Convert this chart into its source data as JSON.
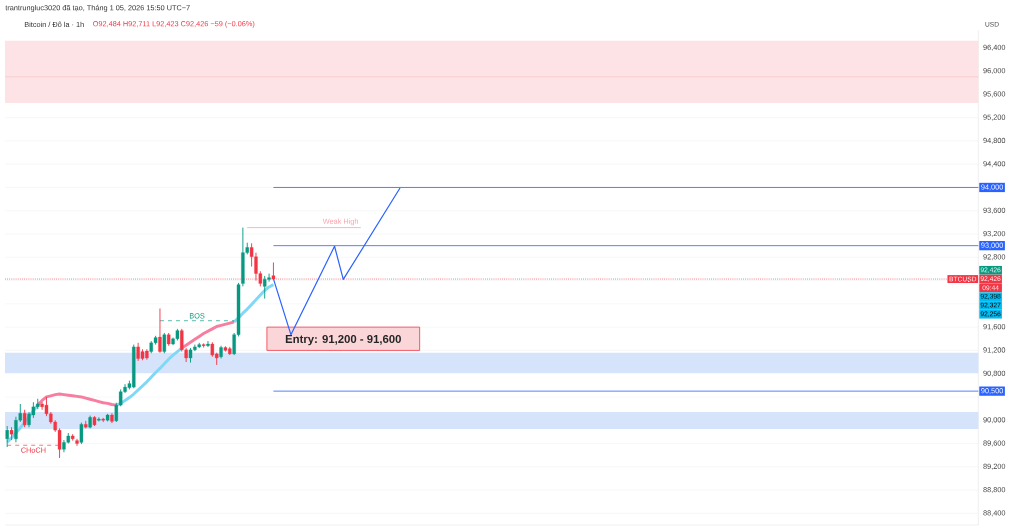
{
  "chart_data": {
    "type": "candlestick",
    "title": "Bitcoin / Đô la · 1h",
    "subtitle": "O92,484 H92,711 L92,423 C92,426 −59 (−0.06%)",
    "ylabel": "USD",
    "annotations": [
      "trantrungluc3020 đã tạo, Tháng 1 05, 2026 15:50 UTC−7",
      "92,426",
      "92,426",
      "09:44",
      "92,398",
      "92,327",
      "92,256"
    ],
    "categories": [
      null,
      null,
      null,
      null,
      null,
      null,
      null,
      null,
      null,
      null,
      null,
      null,
      null,
      null,
      null,
      null,
      null,
      null,
      null,
      null,
      null,
      null,
      null,
      null,
      null,
      null,
      null,
      null,
      null,
      null,
      null,
      null,
      null,
      null,
      null,
      null,
      null,
      null,
      null,
      null,
      null,
      null,
      null,
      null,
      null,
      null,
      null,
      null,
      null,
      null,
      null,
      null,
      null,
      null,
      null,
      null,
      null,
      null,
      null,
      null,
      null,
      null,
      null,
      null,
      null,
      null,
      null,
      null,
      null,
      null,
      null,
      null,
      null,
      null,
      null,
      null,
      null,
      null,
      null,
      null,
      null,
      null,
      null,
      null,
      null,
      null,
      null,
      null,
      null,
      null,
      null,
      null,
      null,
      null,
      null,
      null,
      null,
      null,
      null,
      null,
      null,
      null,
      null,
      null,
      null,
      null,
      null,
      null,
      null,
      null,
      null,
      null,
      null,
      null,
      null,
      null,
      null,
      null,
      null,
      null,
      null,
      null,
      null,
      null,
      null,
      null,
      null,
      null,
      null,
      null,
      null,
      null,
      null,
      null,
      null,
      null,
      null,
      null,
      null,
      null,
      null,
      null,
      null,
      null,
      null,
      null,
      null,
      null,
      null,
      null,
      null,
      null,
      null,
      null,
      null,
      null,
      null,
      null,
      null,
      null,
      null,
      null,
      null,
      null,
      null,
      null,
      null,
      null,
      null,
      null,
      null,
      null,
      null,
      null,
      null,
      null,
      null,
      null,
      null,
      null,
      null,
      null,
      null,
      null,
      null,
      null,
      null,
      null,
      null,
      null,
      null,
      null,
      null,
      null,
      null,
      null,
      null,
      null,
      null,
      null,
      null,
      null,
      null,
      null,
      null,
      null,
      null,
      null,
      null,
      null,
      null,
      null,
      null,
      null,
      null,
      null,
      null,
      null,
      null,
      null,
      null,
      null,
      null
    ],
    "ohlc": [
      [
        89680,
        89900,
        89540,
        89830
      ],
      [
        89830,
        89880,
        89660,
        89760
      ],
      [
        89680,
        90060,
        89620,
        90000
      ],
      [
        90000,
        90280,
        89970,
        90120
      ],
      [
        90120,
        90180,
        89880,
        89920
      ],
      [
        89920,
        90140,
        89880,
        90110
      ],
      [
        90090,
        90310,
        90040,
        90230
      ],
      [
        90230,
        90370,
        90190,
        90280
      ],
      [
        90280,
        90310,
        90180,
        90230
      ],
      [
        90260,
        90400,
        90070,
        90110
      ],
      [
        90110,
        90140,
        89940,
        89970
      ],
      [
        89970,
        90000,
        89800,
        89830
      ],
      [
        89830,
        89860,
        89350,
        89500
      ],
      [
        89500,
        89660,
        89450,
        89620
      ],
      [
        89620,
        89780,
        89600,
        89730
      ],
      [
        89730,
        89760,
        89650,
        89680
      ],
      [
        89650,
        89680,
        89560,
        89600
      ],
      [
        89620,
        89960,
        89590,
        89930
      ],
      [
        89930,
        89990,
        89860,
        89880
      ],
      [
        89880,
        90080,
        89860,
        90050
      ],
      [
        90050,
        90070,
        89900,
        89920
      ],
      [
        90000,
        90050,
        89980,
        90020
      ],
      [
        90020,
        90040,
        89970,
        90000
      ],
      [
        90000,
        90110,
        89980,
        90090
      ],
      [
        90090,
        90120,
        89950,
        89980
      ],
      [
        89990,
        90300,
        89970,
        90260
      ],
      [
        90260,
        90530,
        90240,
        90490
      ],
      [
        90490,
        90620,
        90470,
        90570
      ],
      [
        90560,
        90680,
        90530,
        90630
      ],
      [
        90570,
        91300,
        90550,
        91260
      ],
      [
        91260,
        91330,
        91020,
        91060
      ],
      [
        91180,
        91220,
        91030,
        91060
      ],
      [
        91190,
        91220,
        91040,
        91070
      ],
      [
        91180,
        91360,
        91150,
        91330
      ],
      [
        91330,
        91450,
        91300,
        91420
      ],
      [
        91430,
        91920,
        91160,
        91180
      ],
      [
        91180,
        91500,
        91150,
        91470
      ],
      [
        91470,
        91500,
        91280,
        91310
      ],
      [
        91310,
        91420,
        91290,
        91400
      ],
      [
        91400,
        91570,
        91370,
        91540
      ],
      [
        91540,
        91570,
        91180,
        91210
      ],
      [
        91210,
        91240,
        91000,
        91070
      ],
      [
        91070,
        91240,
        90990,
        91210
      ],
      [
        91210,
        91300,
        91190,
        91260
      ],
      [
        91260,
        91330,
        91240,
        91300
      ],
      [
        91300,
        91320,
        91250,
        91280
      ],
      [
        91280,
        91360,
        91260,
        91310
      ],
      [
        91310,
        91340,
        91090,
        91120
      ],
      [
        91140,
        91160,
        90950,
        91070
      ],
      [
        91090,
        91280,
        91060,
        91250
      ],
      [
        91250,
        91270,
        91180,
        91200
      ],
      [
        91230,
        91260,
        91120,
        91140
      ],
      [
        91140,
        91500,
        91120,
        91470
      ],
      [
        91470,
        92360,
        91440,
        92330
      ],
      [
        92350,
        93310,
        92300,
        92880
      ],
      [
        92880,
        93050,
        92850,
        92970
      ],
      [
        92970,
        93040,
        92640,
        92810
      ],
      [
        92810,
        92880,
        92400,
        92520
      ],
      [
        92520,
        92560,
        92300,
        92350
      ],
      [
        92300,
        92480,
        92090,
        92420
      ],
      [
        92420,
        92520,
        92380,
        92450
      ],
      [
        92484,
        92711,
        92423,
        92426
      ],
      null,
      null,
      null,
      null,
      null,
      null,
      null,
      null,
      null,
      null,
      null,
      null,
      null,
      null,
      null,
      null,
      null,
      null,
      null,
      null,
      null,
      null,
      null,
      null,
      null,
      null,
      null,
      null,
      null,
      null,
      null,
      null,
      null,
      null,
      null,
      null,
      null,
      null,
      null,
      null,
      null,
      null,
      null,
      null,
      null,
      null,
      null,
      null,
      null,
      null,
      null,
      null,
      null,
      null,
      null,
      null,
      null,
      null,
      null,
      null,
      null,
      null,
      null,
      null,
      null,
      null,
      null,
      null,
      null,
      null,
      null,
      null,
      null,
      null,
      null,
      null,
      null,
      null,
      null,
      null,
      null,
      null,
      null,
      null,
      null,
      null,
      null,
      null,
      null,
      null,
      null,
      null,
      null,
      null,
      null,
      null,
      null,
      null,
      null,
      null,
      null,
      null,
      null,
      null,
      null,
      null,
      null,
      null,
      null,
      null,
      null,
      null,
      null,
      null,
      null,
      null,
      null,
      null,
      null,
      null,
      null,
      null,
      null,
      null,
      null,
      null,
      null,
      null,
      null,
      null,
      null,
      null,
      null,
      null,
      null,
      null,
      null,
      null,
      null,
      null,
      null,
      null,
      null,
      null,
      null,
      null,
      null,
      null,
      null,
      null,
      null,
      null,
      null,
      null,
      null,
      null,
      null,
      null,
      null,
      null,
      null
    ],
    "colors": [
      "#089981",
      "#f23645",
      "#089981",
      "#089981",
      "#f23645",
      "#089981",
      "#089981",
      "#089981",
      "#f23645",
      "#f23645",
      "#f23645",
      "#f23645",
      "#f23645",
      "#089981",
      "#089981",
      "#f23645",
      "#f23645",
      "#089981",
      "#f23645",
      "#089981",
      "#f23645",
      "#089981",
      "#f23645",
      "#089981",
      "#f23645",
      "#089981",
      "#089981",
      "#089981",
      "#089981",
      "#089981",
      "#f23645",
      "#f23645",
      "#f23645",
      "#089981",
      "#089981",
      "#f23645",
      "#089981",
      "#f23645",
      "#089981",
      "#089981",
      "#f23645",
      "#f23645",
      "#089981",
      "#089981",
      "#089981",
      "#f23645",
      "#089981",
      "#f23645",
      "#f23645",
      "#089981",
      "#f23645",
      "#f23645",
      "#089981",
      "#089981",
      "#089981",
      "#089981",
      "#f23645",
      "#f23645",
      "#f23645",
      "#089981",
      "#089981",
      "#f23645",
      null,
      null,
      null,
      null,
      null,
      null,
      null,
      null,
      null,
      null,
      null,
      null,
      null,
      null,
      null,
      null,
      null,
      null,
      null,
      null,
      null,
      null,
      null,
      null,
      null,
      null,
      null,
      null,
      null,
      null,
      null,
      null,
      null,
      null,
      null,
      null,
      null,
      null,
      null,
      null,
      null,
      null,
      null,
      null,
      null,
      null,
      null,
      null,
      null,
      null,
      null,
      null,
      null,
      null,
      null,
      null,
      null,
      null,
      null,
      null,
      null,
      null,
      null,
      null,
      null,
      null,
      null,
      null,
      null,
      null,
      null,
      null,
      null,
      null,
      null,
      null,
      null,
      null,
      null,
      null,
      null,
      null,
      null,
      null,
      null,
      null,
      null,
      null,
      null,
      null,
      null,
      null,
      null,
      null,
      null,
      null,
      null,
      null,
      null,
      null,
      null,
      null,
      null,
      null,
      null,
      null,
      null,
      null,
      null,
      null,
      null,
      null,
      null,
      null,
      null,
      null,
      null,
      null,
      null,
      null,
      null,
      null,
      null,
      null,
      null,
      null,
      null,
      null,
      null,
      null,
      null,
      null,
      null,
      null,
      null,
      null,
      null,
      null,
      null,
      null,
      null,
      null,
      null,
      null,
      null,
      null,
      null,
      null,
      null,
      null,
      null,
      null,
      null,
      null,
      null,
      null,
      null,
      null,
      null,
      null,
      null
    ],
    "series": [
      {
        "type": "line",
        "color": "#7fd8f5",
        "values": [
          89620,
          89700,
          89780,
          89870,
          89960,
          90060,
          90160,
          90260,
          null,
          null,
          null,
          null,
          null,
          null,
          null,
          null,
          null,
          null,
          null,
          null,
          null,
          null,
          null,
          null,
          null,
          90260,
          90290,
          90340,
          90390,
          90450,
          90520,
          90590,
          90660,
          90740,
          90820,
          90890,
          90970,
          91050,
          91120,
          91180,
          91240,
          null,
          null,
          null,
          null,
          null,
          null,
          null,
          null,
          null,
          null,
          null,
          91690,
          91760,
          91840,
          91910,
          91990,
          92070,
          92150,
          92230,
          92290,
          92330,
          null,
          null,
          null,
          null,
          null,
          null,
          null,
          null,
          null,
          null,
          null,
          null,
          null,
          null,
          null,
          null,
          null,
          null,
          null,
          null,
          null,
          null,
          null,
          null,
          null,
          null,
          null,
          null,
          null,
          null,
          null,
          null,
          null,
          null,
          null,
          null,
          null,
          null,
          null,
          null,
          null,
          null,
          null,
          null,
          null,
          null,
          null,
          null,
          null,
          null,
          null,
          null,
          null,
          null,
          null,
          null,
          null,
          null,
          null,
          null,
          null,
          null,
          null,
          null,
          null,
          null,
          null,
          null,
          null,
          null,
          null,
          null,
          null,
          null,
          null,
          null,
          null,
          null,
          null,
          null,
          null,
          null,
          null,
          null,
          null,
          null,
          null,
          null,
          null,
          null,
          null,
          null,
          null,
          null,
          null,
          null,
          null,
          null,
          null,
          null,
          null,
          null,
          null,
          null,
          null,
          null,
          null,
          null,
          null,
          null,
          null,
          null,
          null,
          null,
          null,
          null,
          null,
          null,
          null,
          null,
          null,
          null,
          null,
          null,
          null,
          null,
          null,
          null,
          null,
          null,
          null,
          null,
          null,
          null,
          null,
          null,
          null,
          null,
          null,
          null,
          null,
          null,
          null,
          null,
          null,
          null,
          null,
          null,
          null,
          null,
          null,
          null,
          null,
          null,
          null,
          null,
          null,
          null,
          null,
          null,
          null
        ]
      },
      {
        "type": "line",
        "color": "#f77ea0",
        "values": [
          null,
          null,
          null,
          null,
          null,
          null,
          null,
          90260,
          90340,
          90400,
          90420,
          90440,
          90450,
          90440,
          90430,
          90420,
          90410,
          90400,
          90380,
          90360,
          90340,
          90320,
          90300,
          90290,
          90270,
          90260,
          null,
          null,
          null,
          null,
          null,
          null,
          null,
          null,
          null,
          null,
          null,
          null,
          null,
          null,
          91240,
          91290,
          91340,
          91390,
          91440,
          91490,
          91530,
          91570,
          91610,
          91630,
          91650,
          91670,
          91690,
          null,
          null,
          null,
          null,
          null,
          null,
          null,
          null,
          null,
          null,
          null,
          null,
          null,
          null,
          null,
          null,
          null,
          null,
          null,
          null,
          null,
          null,
          null,
          null,
          null,
          null,
          null,
          null,
          null,
          null,
          null,
          null,
          null,
          null,
          null,
          null,
          null,
          null,
          null,
          null,
          null,
          null,
          null,
          null,
          null,
          null,
          null,
          null,
          null,
          null,
          null,
          null,
          null,
          null,
          null,
          null,
          null,
          null,
          null,
          null,
          null,
          null,
          null,
          null,
          null,
          null,
          null,
          null,
          null,
          null,
          null,
          null,
          null,
          null,
          null,
          null,
          null,
          null,
          null,
          null,
          null,
          null,
          null,
          null,
          null,
          null,
          null,
          null,
          null,
          null,
          null,
          null,
          null,
          null,
          null,
          null,
          null,
          null,
          null,
          null,
          null,
          null,
          null,
          null,
          null,
          null,
          null,
          null,
          null,
          null,
          null,
          null,
          null,
          null,
          null,
          null,
          null,
          null,
          null,
          null,
          null,
          null,
          null,
          null,
          null,
          null,
          null,
          null,
          null,
          null,
          null,
          null,
          null,
          null,
          null,
          null,
          null,
          null,
          null,
          null,
          null,
          null,
          null,
          null,
          null,
          null,
          null,
          null,
          null,
          null,
          null,
          null,
          null,
          null,
          null,
          null,
          null,
          null,
          null,
          null,
          null,
          null,
          null,
          null,
          null,
          null,
          null,
          null,
          null,
          null
        ]
      },
      {
        "type": "line",
        "color": "#2962ff",
        "values": [
          null,
          null,
          null,
          null,
          null,
          null,
          null,
          null,
          null,
          null,
          null,
          null,
          null,
          null,
          null,
          null,
          null,
          null,
          null,
          null,
          null,
          null,
          null,
          null,
          null,
          null,
          null,
          null,
          null,
          null,
          null,
          null,
          null,
          null,
          null,
          null,
          null,
          null,
          null,
          null,
          null,
          null,
          null,
          null,
          null,
          null,
          null,
          null,
          null,
          null,
          null,
          null,
          null,
          null,
          null,
          null,
          null,
          null,
          null,
          null,
          null,
          92430,
          null,
          null,
          null,
          91470,
          null,
          null,
          null,
          null,
          null,
          null,
          null,
          null,
          null,
          92990,
          null,
          92420,
          null,
          null,
          null,
          null,
          null,
          null,
          null,
          null,
          null,
          null,
          null,
          null,
          93990,
          null,
          null,
          null,
          null,
          null,
          null,
          null,
          null,
          null,
          null,
          null,
          null,
          null,
          null,
          null,
          null,
          null,
          null,
          null,
          null,
          null,
          null,
          null,
          null,
          null,
          null,
          null,
          null,
          null,
          null,
          null,
          null,
          null,
          null,
          null,
          null,
          null,
          null,
          null,
          null,
          null,
          null,
          null,
          null,
          null,
          null,
          null,
          null,
          null,
          null,
          null,
          null,
          null,
          null,
          null,
          null,
          null,
          null,
          null,
          null,
          null,
          null,
          null,
          null,
          null,
          null,
          null,
          null,
          null,
          null,
          null,
          null,
          null,
          null,
          null,
          null,
          null,
          null,
          null,
          null,
          null,
          null,
          null,
          null,
          null,
          null,
          null,
          null,
          null,
          null,
          null,
          null,
          null,
          null,
          null,
          null,
          null,
          null,
          null,
          null,
          null,
          null,
          null,
          null,
          null,
          null,
          null,
          null,
          null,
          null,
          null,
          null,
          null,
          null,
          null,
          null,
          null,
          null,
          null,
          null,
          null,
          null,
          null,
          null,
          null,
          null,
          null,
          null,
          null,
          null,
          null,
          null
        ]
      },
      {
        "type": "line",
        "name": "Weak High",
        "color": "#f7a1a9",
        "values": [
          null,
          null,
          null,
          null,
          null,
          null,
          null,
          null,
          null,
          null,
          null,
          null,
          null,
          null,
          null,
          null,
          null,
          null,
          null,
          null,
          null,
          null,
          null,
          null,
          null,
          null,
          null,
          null,
          null,
          null,
          null,
          null,
          null,
          null,
          null,
          null,
          null,
          null,
          null,
          null,
          null,
          null,
          null,
          null,
          null,
          null,
          null,
          null,
          null,
          null,
          null,
          null,
          null,
          null,
          null,
          93310,
          93310,
          93310,
          93310,
          93310,
          93310,
          93310,
          93310,
          93310,
          93310,
          93310,
          93310,
          93310,
          93310,
          93310,
          93310,
          93310,
          93310,
          93310,
          93310,
          93310,
          93310,
          93310,
          93310,
          93310,
          93310,
          93310,
          null,
          null,
          null,
          null,
          null,
          null,
          null,
          null,
          null,
          null,
          null,
          null,
          null,
          null,
          null,
          null,
          null,
          null,
          null,
          null,
          null,
          null,
          null,
          null,
          null,
          null,
          null,
          null,
          null,
          null,
          null,
          null,
          null,
          null,
          null,
          null,
          null,
          null,
          null,
          null,
          null,
          null,
          null,
          null,
          null,
          null,
          null,
          null,
          null,
          null,
          null,
          null,
          null,
          null,
          null,
          null,
          null,
          null,
          null,
          null,
          null,
          null,
          null,
          null,
          null,
          null,
          null,
          null,
          null,
          null,
          null,
          null,
          null,
          null,
          null,
          null,
          null,
          null,
          null,
          null,
          null,
          null,
          null,
          null,
          null,
          null,
          null,
          null,
          null,
          null,
          null,
          null,
          null,
          null,
          null,
          null,
          null,
          null,
          null,
          null,
          null,
          null,
          null,
          null,
          null,
          null,
          null,
          null,
          null,
          null,
          null,
          null,
          null,
          null,
          null,
          null,
          null,
          null,
          null,
          null,
          null,
          null,
          null,
          null,
          null,
          null,
          null,
          null,
          null,
          null,
          null,
          null,
          null,
          null,
          null,
          null,
          null,
          null,
          null,
          null,
          null
        ]
      },
      {
        "type": "line",
        "name": "BOS",
        "color": "#089981",
        "line_style": "dashed",
        "values": [
          null,
          null,
          null,
          null,
          null,
          null,
          null,
          null,
          null,
          null,
          null,
          null,
          null,
          null,
          null,
          null,
          null,
          null,
          null,
          null,
          null,
          null,
          null,
          null,
          null,
          null,
          null,
          null,
          null,
          null,
          null,
          null,
          null,
          null,
          null,
          91710,
          91710,
          91710,
          91710,
          91710,
          91710,
          91710,
          91710,
          91710,
          91710,
          91710,
          91710,
          91710,
          91710,
          91710,
          91710,
          91710,
          91710,
          null,
          null,
          null,
          null,
          null,
          null,
          null,
          null,
          null,
          null,
          null,
          null,
          null,
          null,
          null,
          null,
          null,
          null,
          null,
          null,
          null,
          null,
          null,
          null,
          null,
          null,
          null,
          null,
          null,
          null,
          null,
          null,
          null,
          null,
          null,
          null,
          null,
          null,
          null,
          null,
          null,
          null,
          null,
          null,
          null,
          null,
          null,
          null,
          null,
          null,
          null,
          null,
          null,
          null,
          null,
          null,
          null,
          null,
          null,
          null,
          null,
          null,
          null,
          null,
          null,
          null,
          null,
          null,
          null,
          null,
          null,
          null,
          null,
          null,
          null,
          null,
          null,
          null,
          null,
          null,
          null,
          null,
          null,
          null,
          null,
          null,
          null,
          null,
          null,
          null,
          null,
          null,
          null,
          null,
          null,
          null,
          null,
          null,
          null,
          null,
          null,
          null,
          null,
          null,
          null,
          null,
          null,
          null,
          null,
          null,
          null,
          null,
          null,
          null,
          null,
          null,
          null,
          null,
          null,
          null,
          null,
          null,
          null,
          null,
          null,
          null,
          null,
          null,
          null,
          null,
          null,
          null,
          null,
          null,
          null,
          null,
          null,
          null,
          null,
          null,
          null,
          null,
          null,
          null,
          null,
          null,
          null,
          null,
          null,
          null,
          null,
          null,
          null,
          null,
          null,
          null,
          null,
          null,
          null,
          null,
          null,
          null,
          null,
          null,
          null,
          null,
          null,
          null,
          null,
          null
        ]
      },
      {
        "type": "line",
        "name": "CHoCH",
        "color": "#f23645",
        "line_style": "dashed",
        "values": [
          89570,
          89570,
          89570,
          89570,
          89570,
          89570,
          89570,
          89570,
          89570,
          89570,
          89570,
          89570,
          89570,
          null,
          null,
          null,
          null,
          null,
          null,
          null,
          null,
          null,
          null,
          null,
          null,
          null,
          null,
          null,
          null,
          null,
          null,
          null,
          null,
          null,
          null,
          null,
          null,
          null,
          null,
          null,
          null,
          null,
          null,
          null,
          null,
          null,
          null,
          null,
          null,
          null,
          null,
          null,
          null,
          null,
          null,
          null,
          null,
          null,
          null,
          null,
          null,
          null,
          null,
          null,
          null,
          null,
          null,
          null,
          null,
          null,
          null,
          null,
          null,
          null,
          null,
          null,
          null,
          null,
          null,
          null,
          null,
          null,
          null,
          null,
          null,
          null,
          null,
          null,
          null,
          null,
          null,
          null,
          null,
          null,
          null,
          null,
          null,
          null,
          null,
          null,
          null,
          null,
          null,
          null,
          null,
          null,
          null,
          null,
          null,
          null,
          null,
          null,
          null,
          null,
          null,
          null,
          null,
          null,
          null,
          null,
          null,
          null,
          null,
          null,
          null,
          null,
          null,
          null,
          null,
          null,
          null,
          null,
          null,
          null,
          null,
          null,
          null,
          null,
          null,
          null,
          null,
          null,
          null,
          null,
          null,
          null,
          null,
          null,
          null,
          null,
          null,
          null,
          null,
          null,
          null,
          null,
          null,
          null,
          null,
          null,
          null,
          null,
          null,
          null,
          null,
          null,
          null,
          null,
          null,
          null,
          null,
          null,
          null,
          null,
          null,
          null,
          null,
          null,
          null,
          null,
          null,
          null,
          null,
          null,
          null,
          null,
          null,
          null,
          null,
          null,
          null,
          null,
          null,
          null,
          null,
          null,
          null,
          null,
          null,
          null,
          null,
          null,
          null,
          null,
          null,
          null,
          null,
          null,
          null,
          null,
          null,
          null,
          null,
          null,
          null,
          null,
          null,
          null,
          null,
          null,
          null,
          null,
          null
        ]
      }
    ],
    "ref_lines": [
      {
        "axis": "y",
        "value": 94000,
        "label": "94,000",
        "color": "#2962ff"
      },
      {
        "axis": "y",
        "value": 93000,
        "label": "93,000",
        "color": "#2962ff"
      },
      {
        "axis": "y",
        "value": 90500,
        "label": "90,500",
        "color": "#2962ff"
      },
      {
        "axis": "y",
        "value": 95900,
        "color": "#f9c4c8"
      },
      {
        "axis": "y",
        "value": 92426,
        "label": "BTCUSD",
        "color": "#f23645",
        "line_style": "dotted"
      }
    ],
    "bands": [
      {
        "axis": "y",
        "from": 95450,
        "to": 96520,
        "color": "#fde3e5"
      },
      {
        "axis": "y",
        "from": 90810,
        "to": 91160,
        "color": "#d6e4fb"
      },
      {
        "axis": "y",
        "from": 89850,
        "to": 90140,
        "color": "#d6e4fb"
      },
      {
        "axis": "y",
        "from": 91200,
        "to": 91600,
        "label": "Entry: 91,200 - 91,600",
        "color": "#fbd6d9"
      }
    ],
    "ylim": [
      88200,
      96700
    ],
    "yticks": [
      {
        "value": 88400,
        "label": "88,400"
      },
      {
        "value": 88800,
        "label": "88,800"
      },
      {
        "value": 89200,
        "label": "89,200"
      },
      {
        "value": 89600,
        "label": "89,600"
      },
      {
        "value": 90000,
        "label": "90,000"
      },
      {
        "value": 90400,
        "label": null
      },
      {
        "value": 90800,
        "label": "90,800"
      },
      {
        "value": 91200,
        "label": "91,200"
      },
      {
        "value": 91600,
        "label": "91,600"
      },
      {
        "value": 92000,
        "label": null
      },
      {
        "value": 92400,
        "label": null
      },
      {
        "value": 92800,
        "label": "92,800"
      },
      {
        "value": 93200,
        "label": "93,200"
      },
      {
        "value": 93600,
        "label": "93,600"
      },
      {
        "value": 94000,
        "label": null
      },
      {
        "value": 94400,
        "label": "94,400"
      },
      {
        "value": 94800,
        "label": "94,800"
      },
      {
        "value": 95200,
        "label": "95,200"
      },
      {
        "value": 95600,
        "label": "95,600"
      },
      {
        "value": 96000,
        "label": "96,000"
      },
      {
        "value": 96400,
        "label": "96,400"
      }
    ],
    "grid": "y",
    "tick_labels": "y"
  }
}
